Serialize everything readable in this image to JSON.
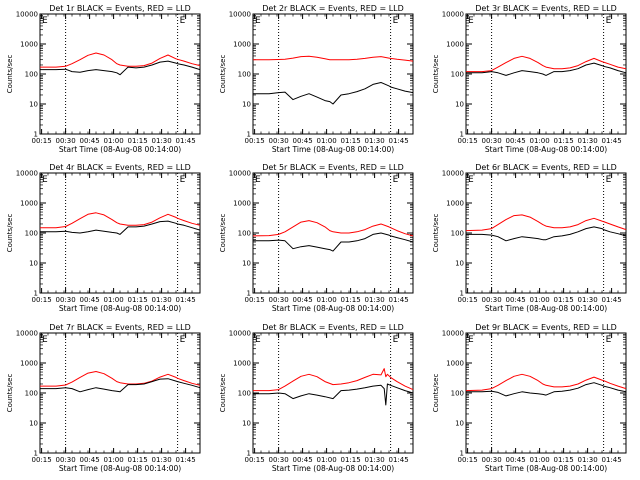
{
  "figure": {
    "xlabel": "Start Time (08-Aug-08 00:14:00)",
    "ylabel": "Counts/sec",
    "x_ticks": [
      "00:15",
      "00:30",
      "00:45",
      "01:00",
      "01:15",
      "01:30",
      "01:45"
    ],
    "y_ticks": [
      "1",
      "10",
      "100",
      "1000",
      "10000"
    ],
    "corner_marks": [
      "E",
      "E"
    ],
    "colors": {
      "events": "#000000",
      "lld": "#ff0000",
      "axes": "#000000"
    }
  },
  "chart_data": [
    {
      "type": "line",
      "title": "Det 1r BLACK = Events, RED = LLD",
      "xlabel": "Start Time (08-Aug-08 00:14:00)",
      "ylabel": "Counts/sec",
      "x_unit": "minutes after 00:14:00",
      "xlim": [
        0,
        100
      ],
      "ylim": [
        1,
        10000
      ],
      "yscale": "log",
      "dotted_x": [
        16,
        86
      ],
      "x": [
        0,
        10,
        16,
        20,
        25,
        30,
        35,
        40,
        45,
        48,
        50,
        55,
        60,
        65,
        70,
        75,
        80,
        85,
        86,
        90,
        95,
        100
      ],
      "series": [
        {
          "name": "LLD",
          "color": "red",
          "values": [
            170,
            170,
            180,
            220,
            300,
            420,
            500,
            430,
            300,
            220,
            200,
            180,
            180,
            190,
            230,
            330,
            430,
            320,
            310,
            270,
            220,
            190
          ]
        },
        {
          "name": "Events",
          "color": "black",
          "values": [
            140,
            140,
            145,
            120,
            115,
            130,
            140,
            130,
            120,
            110,
            95,
            170,
            160,
            170,
            200,
            250,
            270,
            230,
            220,
            200,
            170,
            140
          ]
        }
      ]
    },
    {
      "type": "line",
      "title": "Det 2r BLACK = Events, RED = LLD",
      "xlabel": "Start Time (08-Aug-08 00:14:00)",
      "ylabel": "Counts/sec",
      "x_unit": "minutes after 00:14:00",
      "xlim": [
        0,
        100
      ],
      "ylim": [
        1,
        10000
      ],
      "yscale": "log",
      "dotted_x": [
        16,
        86
      ],
      "x": [
        0,
        10,
        16,
        20,
        25,
        30,
        35,
        40,
        45,
        48,
        50,
        55,
        60,
        65,
        70,
        75,
        80,
        85,
        86,
        90,
        95,
        100
      ],
      "series": [
        {
          "name": "LLD",
          "color": "red",
          "values": [
            300,
            300,
            305,
            310,
            340,
            380,
            390,
            360,
            320,
            300,
            300,
            300,
            300,
            310,
            330,
            360,
            380,
            340,
            330,
            310,
            290,
            270
          ]
        },
        {
          "name": "Events",
          "color": "black",
          "values": [
            22,
            22,
            24,
            25,
            14,
            18,
            22,
            17,
            13,
            12,
            10,
            20,
            22,
            26,
            32,
            45,
            52,
            40,
            37,
            32,
            27,
            24
          ]
        }
      ]
    },
    {
      "type": "line",
      "title": "Det 3r BLACK = Events, RED = LLD",
      "xlabel": "Start Time (08-Aug-08 00:14:00)",
      "ylabel": "Counts/sec",
      "x_unit": "minutes after 00:14:00",
      "xlim": [
        0,
        100
      ],
      "ylim": [
        1,
        10000
      ],
      "yscale": "log",
      "dotted_x": [
        16,
        86
      ],
      "x": [
        0,
        10,
        16,
        20,
        25,
        30,
        35,
        40,
        45,
        48,
        50,
        55,
        60,
        65,
        70,
        75,
        80,
        85,
        86,
        90,
        95,
        100
      ],
      "series": [
        {
          "name": "LLD",
          "color": "red",
          "values": [
            120,
            120,
            130,
            170,
            240,
            330,
            390,
            330,
            240,
            190,
            170,
            150,
            150,
            160,
            190,
            260,
            330,
            260,
            250,
            210,
            170,
            150
          ]
        },
        {
          "name": "Events",
          "color": "black",
          "values": [
            110,
            110,
            120,
            110,
            90,
            110,
            130,
            120,
            110,
            100,
            90,
            120,
            120,
            130,
            150,
            200,
            230,
            190,
            180,
            160,
            130,
            110
          ]
        }
      ]
    },
    {
      "type": "line",
      "title": "Det 4r BLACK = Events, RED = LLD",
      "xlabel": "Start Time (08-Aug-08 00:14:00)",
      "ylabel": "Counts/sec",
      "x_unit": "minutes after 00:14:00",
      "xlim": [
        0,
        100
      ],
      "ylim": [
        1,
        10000
      ],
      "yscale": "log",
      "dotted_x": [
        16,
        86
      ],
      "x": [
        0,
        10,
        16,
        20,
        25,
        30,
        35,
        40,
        45,
        48,
        50,
        55,
        60,
        65,
        70,
        75,
        80,
        85,
        86,
        90,
        95,
        100
      ],
      "series": [
        {
          "name": "LLD",
          "color": "red",
          "values": [
            150,
            150,
            165,
            210,
            300,
            420,
            470,
            400,
            280,
            220,
            200,
            180,
            180,
            190,
            230,
            320,
            420,
            330,
            310,
            260,
            210,
            180
          ]
        },
        {
          "name": "Events",
          "color": "black",
          "values": [
            110,
            110,
            115,
            105,
            100,
            110,
            125,
            115,
            105,
            100,
            90,
            160,
            160,
            170,
            200,
            240,
            250,
            210,
            200,
            180,
            150,
            125
          ]
        }
      ]
    },
    {
      "type": "line",
      "title": "Det 5r BLACK = Events, RED = LLD",
      "xlabel": "Start Time (08-Aug-08 00:14:00)",
      "ylabel": "Counts/sec",
      "x_unit": "minutes after 00:14:00",
      "xlim": [
        0,
        100
      ],
      "ylim": [
        1,
        10000
      ],
      "yscale": "log",
      "dotted_x": [
        16,
        86
      ],
      "x": [
        0,
        10,
        16,
        20,
        25,
        30,
        35,
        40,
        45,
        48,
        50,
        55,
        60,
        65,
        70,
        75,
        80,
        85,
        86,
        90,
        95,
        100
      ],
      "series": [
        {
          "name": "LLD",
          "color": "red",
          "values": [
            80,
            82,
            90,
            110,
            160,
            230,
            260,
            220,
            160,
            120,
            110,
            100,
            100,
            110,
            130,
            170,
            200,
            160,
            150,
            120,
            95,
            80
          ]
        },
        {
          "name": "Events",
          "color": "black",
          "values": [
            55,
            55,
            58,
            55,
            30,
            35,
            38,
            34,
            30,
            28,
            25,
            50,
            50,
            55,
            65,
            90,
            100,
            85,
            80,
            70,
            60,
            50
          ]
        }
      ]
    },
    {
      "type": "line",
      "title": "Det 6r BLACK = Events, RED = LLD",
      "xlabel": "Start Time (08-Aug-08 00:14:00)",
      "ylabel": "Counts/sec",
      "x_unit": "minutes after 00:14:00",
      "xlim": [
        0,
        100
      ],
      "ylim": [
        1,
        10000
      ],
      "yscale": "log",
      "dotted_x": [
        16,
        86
      ],
      "x": [
        0,
        10,
        16,
        20,
        25,
        30,
        35,
        40,
        45,
        48,
        50,
        55,
        60,
        65,
        70,
        75,
        80,
        85,
        86,
        90,
        95,
        100
      ],
      "series": [
        {
          "name": "LLD",
          "color": "red",
          "values": [
            120,
            125,
            140,
            190,
            280,
            380,
            400,
            340,
            240,
            190,
            170,
            150,
            150,
            160,
            190,
            260,
            310,
            250,
            240,
            200,
            160,
            130
          ]
        },
        {
          "name": "Events",
          "color": "black",
          "values": [
            90,
            90,
            85,
            75,
            55,
            65,
            75,
            70,
            65,
            60,
            60,
            75,
            80,
            90,
            110,
            140,
            160,
            140,
            130,
            110,
            95,
            80
          ]
        }
      ]
    },
    {
      "type": "line",
      "title": "Det 7r BLACK = Events, RED = LLD",
      "xlabel": "Start Time (08-Aug-08 00:14:00)",
      "ylabel": "Counts/sec",
      "x_unit": "minutes after 00:14:00",
      "xlim": [
        0,
        100
      ],
      "ylim": [
        1,
        10000
      ],
      "yscale": "log",
      "dotted_x": [
        16,
        86
      ],
      "x": [
        0,
        10,
        16,
        20,
        25,
        30,
        35,
        40,
        45,
        48,
        50,
        55,
        60,
        65,
        70,
        75,
        80,
        85,
        86,
        90,
        95,
        100
      ],
      "series": [
        {
          "name": "LLD",
          "color": "red",
          "values": [
            170,
            170,
            185,
            230,
            330,
            460,
            520,
            440,
            310,
            240,
            220,
            200,
            200,
            210,
            250,
            340,
            420,
            330,
            310,
            260,
            210,
            180
          ]
        },
        {
          "name": "Events",
          "color": "black",
          "values": [
            140,
            140,
            150,
            140,
            110,
            130,
            150,
            135,
            120,
            115,
            110,
            190,
            190,
            200,
            240,
            290,
            300,
            250,
            240,
            210,
            180,
            150
          ]
        }
      ]
    },
    {
      "type": "line",
      "title": "Det 8r BLACK = Events, RED = LLD",
      "xlabel": "Start Time (08-Aug-08 00:14:00)",
      "ylabel": "Counts/sec",
      "x_unit": "minutes after 00:14:00",
      "xlim": [
        0,
        100
      ],
      "ylim": [
        1,
        10000
      ],
      "yscale": "log",
      "dotted_x": [
        16,
        86
      ],
      "x": [
        0,
        10,
        16,
        20,
        25,
        30,
        35,
        40,
        45,
        50,
        55,
        60,
        65,
        70,
        75,
        80,
        82,
        83,
        84,
        86,
        90,
        95,
        100
      ],
      "series": [
        {
          "name": "LLD",
          "color": "red",
          "values": [
            120,
            120,
            130,
            170,
            250,
            360,
            420,
            350,
            240,
            190,
            200,
            220,
            260,
            330,
            420,
            400,
            650,
            350,
            420,
            330,
            240,
            170,
            130
          ]
        },
        {
          "name": "Events",
          "color": "black",
          "values": [
            95,
            95,
            100,
            95,
            65,
            80,
            95,
            85,
            75,
            65,
            120,
            125,
            135,
            150,
            170,
            180,
            140,
            40,
            200,
            180,
            150,
            120,
            100
          ]
        }
      ]
    },
    {
      "type": "line",
      "title": "Det 9r BLACK = Events, RED = LLD",
      "xlabel": "Start Time (08-Aug-08 00:14:00)",
      "ylabel": "Counts/sec",
      "x_unit": "minutes after 00:14:00",
      "xlim": [
        0,
        100
      ],
      "ylim": [
        1,
        10000
      ],
      "yscale": "log",
      "dotted_x": [
        16,
        86
      ],
      "x": [
        0,
        10,
        16,
        20,
        25,
        30,
        35,
        40,
        45,
        48,
        50,
        55,
        60,
        65,
        70,
        75,
        80,
        85,
        86,
        90,
        95,
        100
      ],
      "series": [
        {
          "name": "LLD",
          "color": "red",
          "values": [
            120,
            125,
            140,
            180,
            260,
            360,
            420,
            360,
            260,
            200,
            180,
            160,
            160,
            170,
            200,
            270,
            340,
            270,
            260,
            210,
            170,
            140
          ]
        },
        {
          "name": "Events",
          "color": "black",
          "values": [
            110,
            110,
            115,
            105,
            80,
            95,
            110,
            100,
            95,
            90,
            85,
            110,
            115,
            125,
            145,
            190,
            220,
            180,
            170,
            150,
            125,
            110
          ]
        }
      ]
    }
  ]
}
